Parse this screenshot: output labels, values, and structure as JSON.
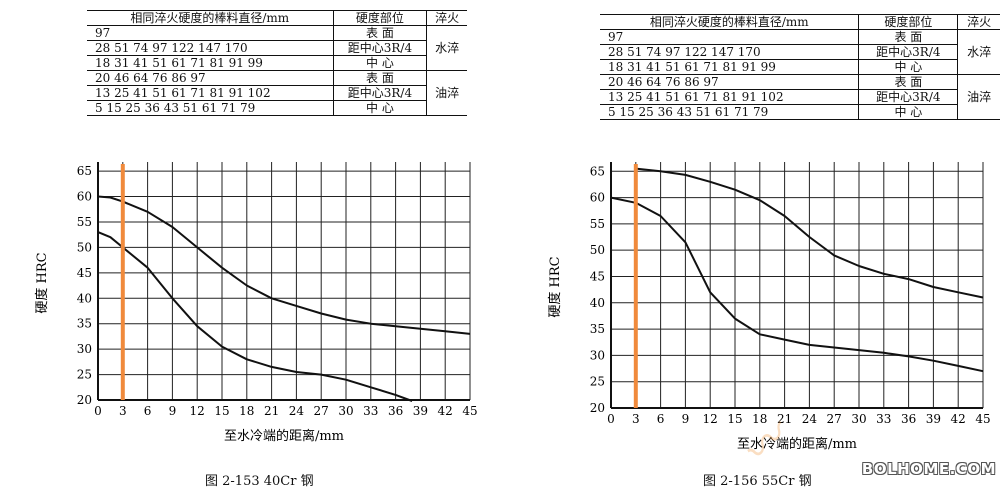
{
  "charts": [
    {
      "id": "40cr",
      "caption": "图 2-153    40Cr 钢",
      "table": {
        "header": [
          "相同淬火硬度的棒料直径/mm",
          "硬度部位",
          "淬火"
        ],
        "rows": [
          {
            "diameters": "97",
            "position": "表    面",
            "quench": "水淬"
          },
          {
            "diameters": "28  51  74  97  122 147 170",
            "position": "距中心3R/4",
            "quench": ""
          },
          {
            "diameters": "18  31  41  51  61  71  81  91  99",
            "position": "中    心",
            "quench": ""
          },
          {
            "diameters": "20  46  64  76  86  97",
            "position": "表    面",
            "quench": "油淬"
          },
          {
            "diameters": "13  25  41  51  61  71  81  91  102",
            "position": "距中心3R/4",
            "quench": ""
          },
          {
            "diameters": "5  15  25  36  43  51  61  71  79",
            "position": "中    心",
            "quench": ""
          }
        ]
      }
    },
    {
      "id": "55cr",
      "caption": "图 2-156    55Cr 钢",
      "table": {
        "header": [
          "相同淬火硬度的棒料直径/mm",
          "硬度部位",
          "淬火"
        ],
        "rows": [
          {
            "diameters": "97",
            "position": "表    面",
            "quench": "水淬"
          },
          {
            "diameters": "28  51  74  97  122 147 170",
            "position": "距中心3R/4",
            "quench": ""
          },
          {
            "diameters": "18  31  41  51  61  71  81  91  99",
            "position": "中    心",
            "quench": ""
          },
          {
            "diameters": "20  46  64  76  86  97",
            "position": "表    面",
            "quench": "油淬"
          },
          {
            "diameters": "13  25  41  51  61  71  81  91  102",
            "position": "距中心3R/4",
            "quench": ""
          },
          {
            "diameters": "5  15  25  36  43  51  61  71  79",
            "position": "中    心",
            "quench": ""
          }
        ]
      }
    }
  ],
  "chart_data": [
    {
      "type": "line",
      "xlabel": "至水冷端的距离/mm",
      "ylabel": "硬度  HRC",
      "xlim": [
        0,
        45
      ],
      "ylim": [
        20,
        66
      ],
      "xticks": [
        0,
        3,
        6,
        9,
        12,
        15,
        18,
        21,
        24,
        27,
        30,
        33,
        36,
        39,
        42,
        45
      ],
      "yticks": [
        20,
        25,
        30,
        35,
        40,
        45,
        50,
        55,
        60,
        65
      ],
      "grid": true,
      "marker_line_x": 3,
      "marker_color": "#f08a3c",
      "series": [
        {
          "x": [
            0,
            1.5,
            3,
            6,
            9,
            12,
            15,
            18,
            21,
            24,
            27,
            30,
            33,
            36,
            39,
            42,
            45
          ],
          "y": [
            60,
            59.8,
            59,
            57,
            54,
            50,
            46,
            42.5,
            40,
            38.5,
            37,
            35.8,
            35,
            34.5,
            34,
            33.5,
            33
          ]
        },
        {
          "x": [
            0,
            1.5,
            3,
            6,
            9,
            12,
            15,
            18,
            21,
            24,
            27,
            30,
            33,
            36,
            38
          ],
          "y": [
            53,
            52,
            50,
            46,
            40,
            34.5,
            30.5,
            28,
            26.5,
            25.5,
            25,
            24,
            22.5,
            21,
            19.8
          ]
        }
      ]
    },
    {
      "type": "line",
      "xlabel": "至水冷端的距离/mm",
      "ylabel": "硬度  HRC",
      "xlim": [
        0,
        45
      ],
      "ylim": [
        20,
        66
      ],
      "xticks": [
        0,
        3,
        6,
        9,
        12,
        15,
        18,
        21,
        24,
        27,
        30,
        33,
        36,
        39,
        42,
        45
      ],
      "yticks": [
        20,
        25,
        30,
        35,
        40,
        45,
        50,
        55,
        60,
        65
      ],
      "grid": true,
      "marker_line_x": 3,
      "marker_color": "#f08a3c",
      "series": [
        {
          "x": [
            3,
            6,
            9,
            12,
            15,
            18,
            21,
            24,
            27,
            30,
            33,
            36,
            39,
            42,
            45
          ],
          "y": [
            65.5,
            65,
            64.3,
            63,
            61.5,
            59.5,
            56.5,
            52.5,
            49,
            47,
            45.5,
            44.5,
            43,
            42,
            41
          ]
        },
        {
          "x": [
            0,
            3,
            6,
            9,
            12,
            15,
            18,
            21,
            24,
            27,
            30,
            33,
            36,
            39,
            42,
            45
          ],
          "y": [
            60,
            59,
            56.5,
            51.5,
            42,
            37,
            34,
            33,
            32,
            31.5,
            31,
            30.5,
            29.8,
            29,
            28,
            27
          ]
        }
      ]
    }
  ],
  "watermark": {
    "site": "BOLHOME.COM",
    "logo": "Bolhome"
  }
}
